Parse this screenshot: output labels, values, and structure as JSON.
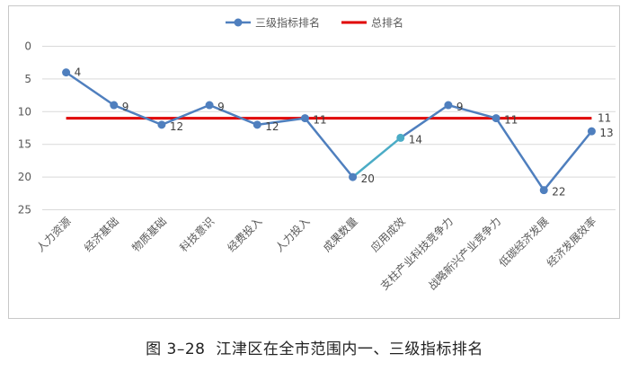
{
  "caption": {
    "figure_number": "图 3–28",
    "title": "江津区在全市范围内一、三级指标排名"
  },
  "chart_data": {
    "type": "line",
    "categories": [
      "人力资源",
      "经济基础",
      "物质基础",
      "科技意识",
      "经费投入",
      "人力投入",
      "成果数量",
      "应用成效",
      "支柱产业科技竞争力",
      "战略新兴产业竞争力",
      "低碳经济发展",
      "经济发展效率"
    ],
    "series": [
      {
        "name": "三级指标排名",
        "values": [
          4,
          9,
          12,
          9,
          12,
          11,
          20,
          14,
          9,
          11,
          22,
          13
        ],
        "color": "#4f7fbe",
        "highlight_segment_color": "#4bacc6"
      },
      {
        "name": "总排名",
        "values": [
          11,
          11,
          11,
          11,
          11,
          11,
          11,
          11,
          11,
          11,
          11,
          11
        ],
        "color": "#e00000",
        "end_label": "11"
      }
    ],
    "y_ticks": [
      0,
      5,
      10,
      15,
      20,
      25
    ],
    "ylim": [
      0,
      25
    ],
    "y_reversed": true,
    "grid": "horizontal",
    "legend": "top-center",
    "xlabel": "",
    "ylabel": ""
  }
}
